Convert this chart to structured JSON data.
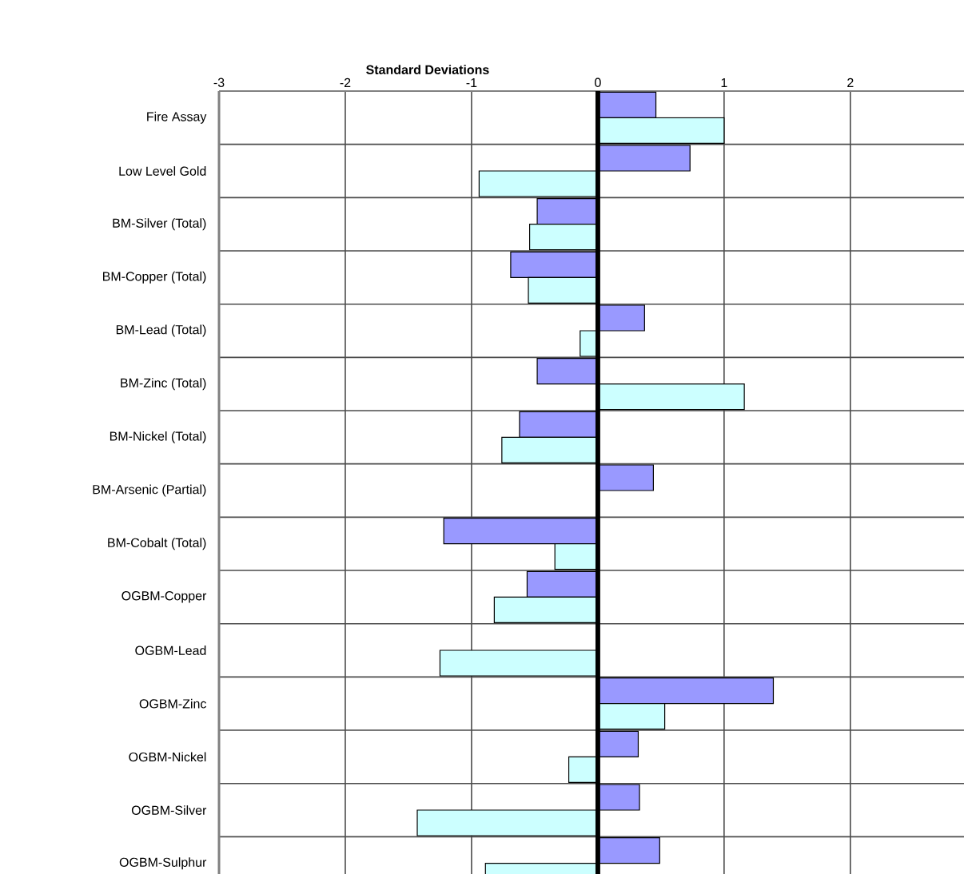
{
  "chart_data": {
    "type": "bar",
    "orientation": "horizontal",
    "xlabel": "Standard Deviations",
    "categories": [
      "Fire Assay",
      "Low Level Gold",
      "BM-Silver (Total)",
      "BM-Copper (Total)",
      "BM-Lead (Total)",
      "BM-Zinc (Total)",
      "BM-Nickel (Total)",
      "BM-Arsenic (Partial)",
      "BM-Cobalt (Total)",
      "OGBM-Copper",
      "OGBM-Lead",
      "OGBM-Zinc",
      "OGBM-Nickel",
      "OGBM-Silver",
      "OGBM-Sulphur"
    ],
    "series": [
      {
        "color": "#9999ff",
        "values": [
          0.46,
          0.73,
          -0.48,
          -0.69,
          0.37,
          -0.48,
          -0.62,
          0.44,
          -1.22,
          -0.56,
          null,
          1.39,
          0.32,
          0.33,
          0.49
        ]
      },
      {
        "color": "#ccffff",
        "values": [
          1.0,
          -0.94,
          -0.54,
          -0.55,
          -0.14,
          1.16,
          -0.76,
          null,
          -0.34,
          -0.82,
          -1.25,
          0.53,
          -0.23,
          -1.43,
          -0.89
        ]
      }
    ],
    "xlim": [
      -3,
      2.9
    ],
    "xticks": [
      -3,
      -2,
      -1,
      0,
      1,
      2
    ],
    "grid": true
  }
}
